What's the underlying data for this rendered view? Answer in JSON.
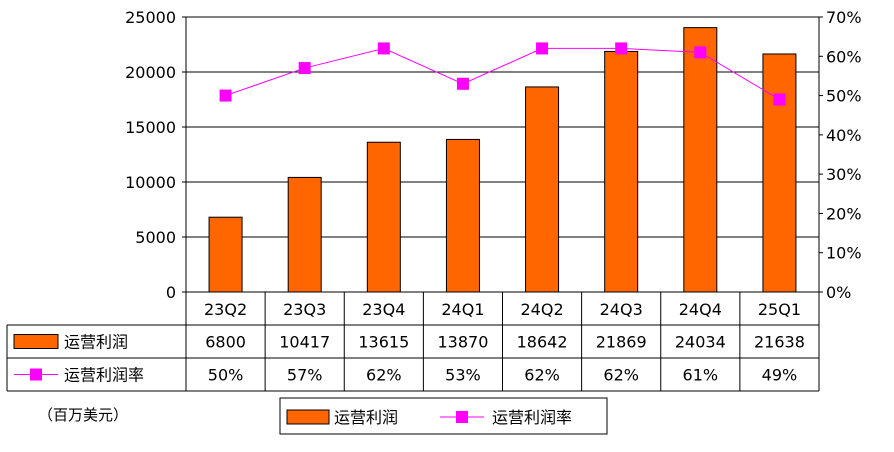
{
  "chart_data": {
    "type": "bar",
    "categories": [
      "23Q2",
      "23Q3",
      "23Q4",
      "24Q1",
      "24Q2",
      "24Q3",
      "24Q4",
      "25Q1"
    ],
    "series": [
      {
        "name": "运营利润",
        "type": "bar",
        "axis": "left",
        "color": "#FF6600",
        "values": [
          6800,
          10417,
          13615,
          13870,
          18642,
          21869,
          24034,
          21638
        ]
      },
      {
        "name": "运营利润率",
        "type": "line",
        "axis": "right",
        "color": "#FF00FF",
        "values": [
          0.5,
          0.57,
          0.62,
          0.53,
          0.62,
          0.62,
          0.61,
          0.49
        ]
      }
    ],
    "y_left": {
      "min": 0,
      "max": 25000,
      "ticks": [
        0,
        5000,
        10000,
        15000,
        20000,
        25000
      ]
    },
    "y_right": {
      "min": 0,
      "max": 0.7,
      "ticks": [
        "0%",
        "10%",
        "20%",
        "30%",
        "40%",
        "50%",
        "60%",
        "70%"
      ]
    },
    "table": {
      "rows": [
        {
          "label": "运营利润",
          "cells": [
            "6800",
            "10417",
            "13615",
            "13870",
            "18642",
            "21869",
            "24034",
            "21638"
          ]
        },
        {
          "label": "运营利润率",
          "cells": [
            "50%",
            "57%",
            "62%",
            "53%",
            "62%",
            "62%",
            "61%",
            "49%"
          ]
        }
      ]
    },
    "legend": {
      "position": "bottom",
      "items": [
        "运营利润",
        "运营利润率"
      ]
    },
    "grid": true
  },
  "unit_note": "（百万美元）"
}
